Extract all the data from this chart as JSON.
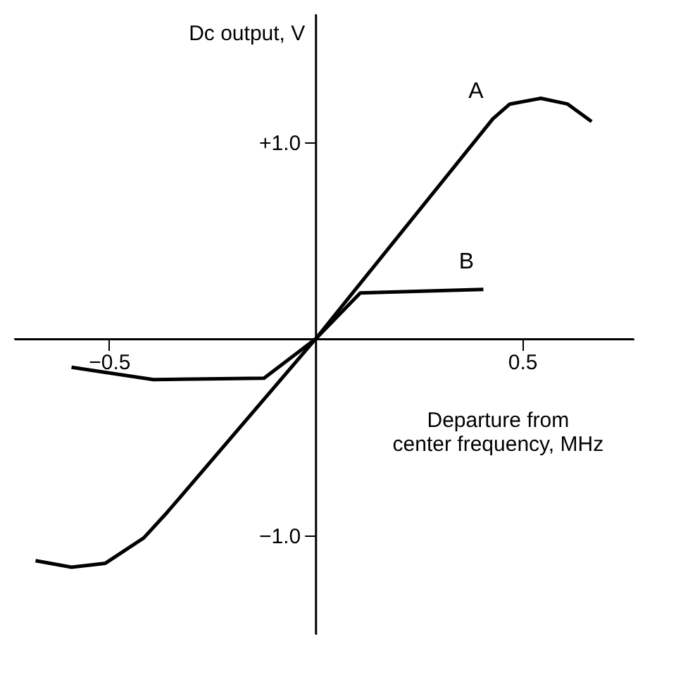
{
  "chart_data": {
    "type": "line",
    "xlabel": "Departure from center frequency, MHz",
    "ylabel": "Dc output, V",
    "xlim": [
      -0.73,
      0.77
    ],
    "ylim": [
      -1.5,
      1.65
    ],
    "xticks": [
      {
        "value": -0.5,
        "label": "−0.5"
      },
      0.5
    ],
    "yticks": [
      {
        "value": -1.0,
        "label": "−1.0"
      },
      {
        "value": 1.0,
        "label": "+1.0"
      }
    ],
    "grid": false,
    "legend": false,
    "marker": "none",
    "line_style": "solid",
    "series": [
      {
        "name": "A",
        "color": "#000000",
        "x": [
          -0.678,
          -0.591,
          -0.509,
          -0.416,
          -0.358,
          0,
          0.429,
          0.47,
          0.545,
          0.61,
          0.668
        ],
        "values": [
          -1.127,
          -1.16,
          -1.14,
          -1.011,
          -0.878,
          0,
          1.118,
          1.193,
          1.222,
          1.193,
          1.104
        ]
      },
      {
        "name": "B",
        "color": "#000000",
        "x": [
          -0.591,
          -0.393,
          -0.125,
          0,
          0.108,
          0.406
        ],
        "values": [
          -0.144,
          -0.207,
          -0.2,
          0,
          0.233,
          0.251
        ]
      }
    ]
  }
}
